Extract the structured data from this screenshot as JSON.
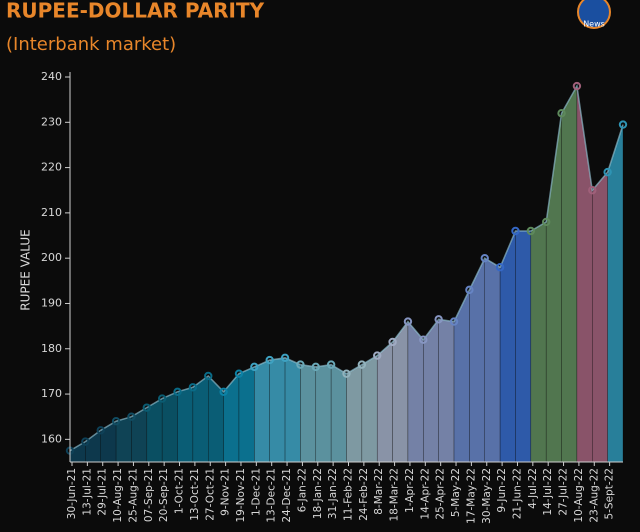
{
  "logo": "News",
  "chart_data": {
    "type": "area",
    "title": "RUPEE-DOLLAR PARITY",
    "subtitle": "(Interbank market)",
    "y_label": "RUPEE VALUE",
    "categories": [
      "30-Jun-21",
      "13-Jul-21",
      "29-Jul-21",
      "10-Aug-21",
      "25-Aug-21",
      "07-Sep-21",
      "20-Sep-21",
      "1-Oct-21",
      "13-Oct-21",
      "27-Oct-21",
      "9-Nov-21",
      "19-Nov-21",
      "1-Dec-21",
      "13-Dec-21",
      "24-Dec-21",
      "6-Jan-22",
      "18-Jan-22",
      "31-Jan-22",
      "11-Feb-22",
      "24-Feb-22",
      "8-Mar-22",
      "18-Mar-22",
      "1-Apr-22",
      "14-Apr-22",
      "25-Apr-22",
      "5-May-22",
      "17-May-22",
      "30-May-22",
      "9-Jun-22",
      "21-Jun-22",
      "4-Jul-22",
      "14-Jul-22",
      "27-Jul-22",
      "10-Aug-22",
      "23-Aug-22",
      "5-Sept-22",
      null
    ],
    "values": [
      157.5,
      159.5,
      162,
      164,
      165,
      167,
      169,
      170.5,
      171.5,
      174,
      170.5,
      174.5,
      176,
      177.5,
      178,
      176.5,
      176,
      176.5,
      174.5,
      176.5,
      178.5,
      181.5,
      186,
      182,
      186.5,
      186,
      193,
      200,
      198,
      206,
      206,
      208,
      232,
      238,
      215,
      219,
      229.5
    ],
    "colors": [
      "#0e4158",
      "#0e4158",
      "#0e4158",
      "#114d63",
      "#114d63",
      "#0b5c72",
      "#0b5c72",
      "#0a6c88",
      "#0a6c88",
      "#0a6c88",
      "#0c82a6",
      "#0c82a6",
      "#3ea2c2",
      "#3ea2c2",
      "#3ea2c2",
      "#6aa9b8",
      "#6aa9b8",
      "#6aa9b8",
      "#93b3bd",
      "#93b3bd",
      "#a0abc3",
      "#a0abc3",
      "#8796c2",
      "#8796c2",
      "#8796c2",
      "#6684c4",
      "#6684c4",
      "#6684c4",
      "#3568c6",
      "#3568c6",
      "#5e8a5c",
      "#5e8a5c",
      "#5e8a5c",
      "#a0607a",
      "#a0607a",
      "#2e94b4",
      "#2e94b4"
    ],
    "ylim": [
      155,
      240
    ],
    "yticks": [
      160,
      170,
      180,
      190,
      200,
      210,
      220,
      230,
      240
    ]
  }
}
